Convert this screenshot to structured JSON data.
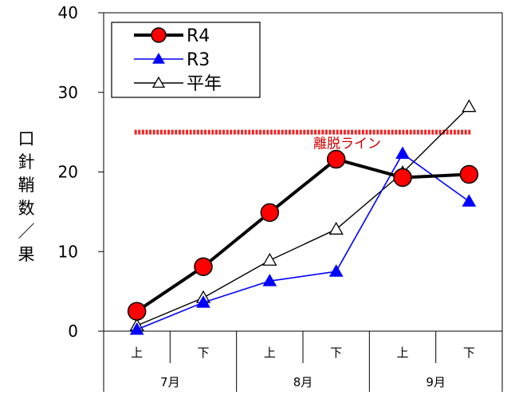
{
  "chart_data": {
    "type": "line",
    "categories": [
      "上",
      "下",
      "上",
      "下",
      "上",
      "下"
    ],
    "months": [
      "7月",
      "8月",
      "9月"
    ],
    "ylabel": "口針鞘数／果",
    "ylim": [
      0,
      40
    ],
    "yticks": [
      0,
      10,
      20,
      30,
      40
    ],
    "grid": false,
    "legend_position": "top-left",
    "series": [
      {
        "name": "R4",
        "values": [
          2.5,
          8.1,
          14.9,
          21.6,
          19.3,
          19.7
        ],
        "color": "#000000",
        "marker": "circle",
        "marker_color": "#ff0000"
      },
      {
        "name": "R3",
        "values": [
          0.2,
          3.6,
          6.3,
          7.5,
          22.3,
          16.3
        ],
        "color": "#0000ff",
        "marker": "filled-triangle",
        "marker_color": "#0000ff"
      },
      {
        "name": "平年",
        "values": [
          0.7,
          4.2,
          8.9,
          12.8,
          19.9,
          28.2
        ],
        "color": "#000000",
        "marker": "open-triangle",
        "marker_color": "#ffffff"
      }
    ],
    "reference_line": {
      "label": "離脱ライン",
      "value": 25,
      "color": "#ee0000"
    }
  }
}
